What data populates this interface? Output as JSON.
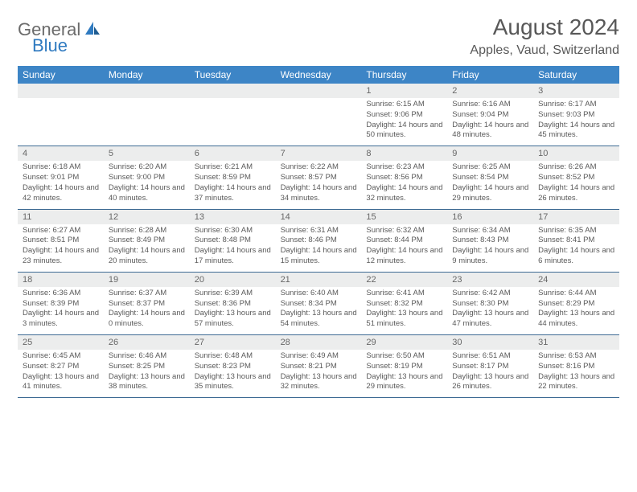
{
  "logo": {
    "general": "General",
    "blue": "Blue"
  },
  "title": "August 2024",
  "location": "Apples, Vaud, Switzerland",
  "colors": {
    "header_bar": "#3d85c6",
    "daynum_band": "#eceded",
    "rule": "#3d6a93",
    "text_muted": "#5a5a5a",
    "title_text": "#585858"
  },
  "day_headers": [
    "Sunday",
    "Monday",
    "Tuesday",
    "Wednesday",
    "Thursday",
    "Friday",
    "Saturday"
  ],
  "weeks": [
    [
      {
        "n": "",
        "sr": "",
        "ss": "",
        "dl": ""
      },
      {
        "n": "",
        "sr": "",
        "ss": "",
        "dl": ""
      },
      {
        "n": "",
        "sr": "",
        "ss": "",
        "dl": ""
      },
      {
        "n": "",
        "sr": "",
        "ss": "",
        "dl": ""
      },
      {
        "n": "1",
        "sr": "Sunrise: 6:15 AM",
        "ss": "Sunset: 9:06 PM",
        "dl": "Daylight: 14 hours and 50 minutes."
      },
      {
        "n": "2",
        "sr": "Sunrise: 6:16 AM",
        "ss": "Sunset: 9:04 PM",
        "dl": "Daylight: 14 hours and 48 minutes."
      },
      {
        "n": "3",
        "sr": "Sunrise: 6:17 AM",
        "ss": "Sunset: 9:03 PM",
        "dl": "Daylight: 14 hours and 45 minutes."
      }
    ],
    [
      {
        "n": "4",
        "sr": "Sunrise: 6:18 AM",
        "ss": "Sunset: 9:01 PM",
        "dl": "Daylight: 14 hours and 42 minutes."
      },
      {
        "n": "5",
        "sr": "Sunrise: 6:20 AM",
        "ss": "Sunset: 9:00 PM",
        "dl": "Daylight: 14 hours and 40 minutes."
      },
      {
        "n": "6",
        "sr": "Sunrise: 6:21 AM",
        "ss": "Sunset: 8:59 PM",
        "dl": "Daylight: 14 hours and 37 minutes."
      },
      {
        "n": "7",
        "sr": "Sunrise: 6:22 AM",
        "ss": "Sunset: 8:57 PM",
        "dl": "Daylight: 14 hours and 34 minutes."
      },
      {
        "n": "8",
        "sr": "Sunrise: 6:23 AM",
        "ss": "Sunset: 8:56 PM",
        "dl": "Daylight: 14 hours and 32 minutes."
      },
      {
        "n": "9",
        "sr": "Sunrise: 6:25 AM",
        "ss": "Sunset: 8:54 PM",
        "dl": "Daylight: 14 hours and 29 minutes."
      },
      {
        "n": "10",
        "sr": "Sunrise: 6:26 AM",
        "ss": "Sunset: 8:52 PM",
        "dl": "Daylight: 14 hours and 26 minutes."
      }
    ],
    [
      {
        "n": "11",
        "sr": "Sunrise: 6:27 AM",
        "ss": "Sunset: 8:51 PM",
        "dl": "Daylight: 14 hours and 23 minutes."
      },
      {
        "n": "12",
        "sr": "Sunrise: 6:28 AM",
        "ss": "Sunset: 8:49 PM",
        "dl": "Daylight: 14 hours and 20 minutes."
      },
      {
        "n": "13",
        "sr": "Sunrise: 6:30 AM",
        "ss": "Sunset: 8:48 PM",
        "dl": "Daylight: 14 hours and 17 minutes."
      },
      {
        "n": "14",
        "sr": "Sunrise: 6:31 AM",
        "ss": "Sunset: 8:46 PM",
        "dl": "Daylight: 14 hours and 15 minutes."
      },
      {
        "n": "15",
        "sr": "Sunrise: 6:32 AM",
        "ss": "Sunset: 8:44 PM",
        "dl": "Daylight: 14 hours and 12 minutes."
      },
      {
        "n": "16",
        "sr": "Sunrise: 6:34 AM",
        "ss": "Sunset: 8:43 PM",
        "dl": "Daylight: 14 hours and 9 minutes."
      },
      {
        "n": "17",
        "sr": "Sunrise: 6:35 AM",
        "ss": "Sunset: 8:41 PM",
        "dl": "Daylight: 14 hours and 6 minutes."
      }
    ],
    [
      {
        "n": "18",
        "sr": "Sunrise: 6:36 AM",
        "ss": "Sunset: 8:39 PM",
        "dl": "Daylight: 14 hours and 3 minutes."
      },
      {
        "n": "19",
        "sr": "Sunrise: 6:37 AM",
        "ss": "Sunset: 8:37 PM",
        "dl": "Daylight: 14 hours and 0 minutes."
      },
      {
        "n": "20",
        "sr": "Sunrise: 6:39 AM",
        "ss": "Sunset: 8:36 PM",
        "dl": "Daylight: 13 hours and 57 minutes."
      },
      {
        "n": "21",
        "sr": "Sunrise: 6:40 AM",
        "ss": "Sunset: 8:34 PM",
        "dl": "Daylight: 13 hours and 54 minutes."
      },
      {
        "n": "22",
        "sr": "Sunrise: 6:41 AM",
        "ss": "Sunset: 8:32 PM",
        "dl": "Daylight: 13 hours and 51 minutes."
      },
      {
        "n": "23",
        "sr": "Sunrise: 6:42 AM",
        "ss": "Sunset: 8:30 PM",
        "dl": "Daylight: 13 hours and 47 minutes."
      },
      {
        "n": "24",
        "sr": "Sunrise: 6:44 AM",
        "ss": "Sunset: 8:29 PM",
        "dl": "Daylight: 13 hours and 44 minutes."
      }
    ],
    [
      {
        "n": "25",
        "sr": "Sunrise: 6:45 AM",
        "ss": "Sunset: 8:27 PM",
        "dl": "Daylight: 13 hours and 41 minutes."
      },
      {
        "n": "26",
        "sr": "Sunrise: 6:46 AM",
        "ss": "Sunset: 8:25 PM",
        "dl": "Daylight: 13 hours and 38 minutes."
      },
      {
        "n": "27",
        "sr": "Sunrise: 6:48 AM",
        "ss": "Sunset: 8:23 PM",
        "dl": "Daylight: 13 hours and 35 minutes."
      },
      {
        "n": "28",
        "sr": "Sunrise: 6:49 AM",
        "ss": "Sunset: 8:21 PM",
        "dl": "Daylight: 13 hours and 32 minutes."
      },
      {
        "n": "29",
        "sr": "Sunrise: 6:50 AM",
        "ss": "Sunset: 8:19 PM",
        "dl": "Daylight: 13 hours and 29 minutes."
      },
      {
        "n": "30",
        "sr": "Sunrise: 6:51 AM",
        "ss": "Sunset: 8:17 PM",
        "dl": "Daylight: 13 hours and 26 minutes."
      },
      {
        "n": "31",
        "sr": "Sunrise: 6:53 AM",
        "ss": "Sunset: 8:16 PM",
        "dl": "Daylight: 13 hours and 22 minutes."
      }
    ]
  ]
}
